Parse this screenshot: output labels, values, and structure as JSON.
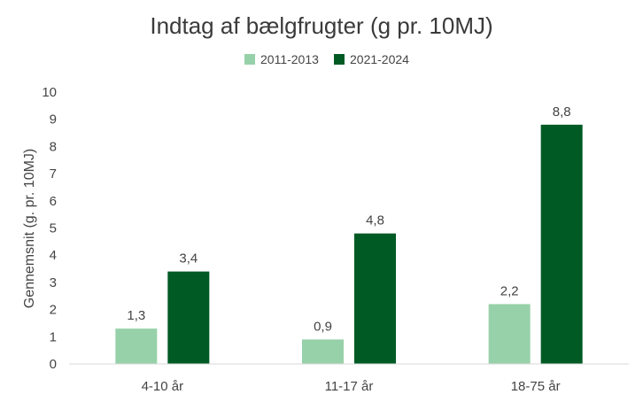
{
  "chart_data": {
    "type": "bar",
    "title": "Indtag af bælgfrugter (g pr. 10MJ)",
    "ylabel": "Gennemsnit (g. pr. 10MJ)",
    "xlabel": "",
    "categories": [
      "4-10 år",
      "11-17 år",
      "18-75 år"
    ],
    "series": [
      {
        "name": "2011-2013",
        "values": [
          1.3,
          0.9,
          2.2
        ],
        "labels": [
          "1,3",
          "0,9",
          "2,2"
        ],
        "color": "#97d1a9"
      },
      {
        "name": "2021-2024",
        "values": [
          3.4,
          4.8,
          8.8
        ],
        "labels": [
          "3,4",
          "4,8",
          "8,8"
        ],
        "color": "#005a24"
      }
    ],
    "ylim": [
      0,
      10
    ],
    "yticks": [
      "0",
      "1",
      "2",
      "3",
      "4",
      "5",
      "6",
      "7",
      "8",
      "9",
      "10"
    ],
    "grid": false,
    "legend_position": "top-center"
  }
}
